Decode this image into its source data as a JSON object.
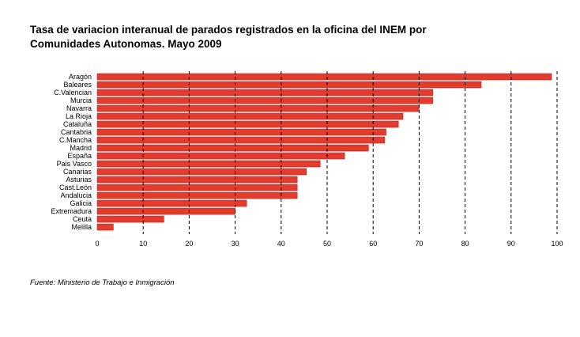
{
  "title_line1": "Tasa de variacion interanual de parados registrados en la oficina del INEM por",
  "title_line2": "Comunidades Autonomas. Mayo 2009",
  "source": "Fuente: Ministerio de Trabajo e Inmigración",
  "colors": {
    "bar": "#e33b2e",
    "bar_stroke": "#b52a20"
  },
  "chart_data": {
    "type": "bar",
    "orientation": "horizontal",
    "categories": [
      "Aragón",
      "Baleares",
      "C.Valencian",
      "Murcia",
      "Navarra",
      "La Rioja",
      "Cataluña",
      "Cantabria",
      "C.Mancha",
      "Madrid",
      "España",
      "Pais Vasco",
      "Canarias",
      "Asturias",
      "Cast.León",
      "Andalucia",
      "Galicia",
      "Extremadura",
      "Ceuta",
      "Melilla"
    ],
    "values": [
      98.8,
      83.5,
      73.0,
      73.0,
      70.0,
      66.5,
      65.5,
      62.8,
      62.5,
      59.0,
      53.8,
      48.5,
      45.5,
      43.5,
      43.5,
      43.5,
      32.5,
      30.0,
      14.5,
      3.5
    ],
    "xlim": [
      0,
      100
    ],
    "xticks": [
      0,
      10,
      20,
      30,
      40,
      50,
      60,
      70,
      80,
      90,
      100
    ],
    "grid": "vertical dashed",
    "title": "Tasa de variacion interanual de parados registrados en la oficina del INEM por Comunidades Autonomas. Mayo 2009",
    "xlabel": "",
    "ylabel": ""
  }
}
